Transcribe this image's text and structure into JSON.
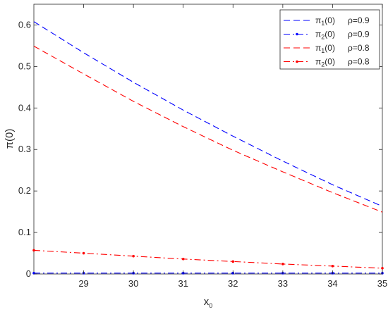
{
  "chart_data": {
    "type": "line",
    "xlabel": "x",
    "xlabel_sub": "0",
    "ylabel": "π(0)",
    "xlim": [
      28,
      35
    ],
    "ylim": [
      0,
      0.65
    ],
    "xticks": [
      29,
      30,
      31,
      32,
      33,
      34,
      35
    ],
    "yticks": [
      0,
      0.1,
      0.2,
      0.3,
      0.4,
      0.5,
      0.6
    ],
    "ytick_labels": [
      "0",
      "0.1",
      "0.2",
      "0.3",
      "0.4",
      "0.5",
      "0.6"
    ],
    "grid": false,
    "legend_position": "top-right",
    "series": [
      {
        "name": "π1(0)  ρ=0.9",
        "legend": {
          "pi": "π",
          "sub": "1",
          "rest": "(0)",
          "rho": "ρ=0.9"
        },
        "color": "#0000ff",
        "style": "dashed",
        "marker": "none",
        "x": [
          28,
          29,
          30,
          31,
          32,
          33,
          34,
          35
        ],
        "y": [
          0.608,
          0.533,
          0.462,
          0.395,
          0.332,
          0.272,
          0.215,
          0.163
        ]
      },
      {
        "name": "π2(0)  ρ=0.9",
        "legend": {
          "pi": "π",
          "sub": "2",
          "rest": "(0)",
          "rho": "ρ=0.9"
        },
        "color": "#0000ff",
        "style": "dashdot",
        "marker": "dot",
        "x": [
          28,
          29,
          30,
          31,
          32,
          33,
          34,
          35
        ],
        "y": [
          0.002,
          0.002,
          0.002,
          0.002,
          0.002,
          0.002,
          0.002,
          0.002
        ]
      },
      {
        "name": "π1(0)  ρ=0.8",
        "legend": {
          "pi": "π",
          "sub": "1",
          "rest": "(0)",
          "rho": "ρ=0.8"
        },
        "color": "#ff0000",
        "style": "dashed",
        "marker": "none",
        "x": [
          28,
          29,
          30,
          31,
          32,
          33,
          34,
          35
        ],
        "y": [
          0.549,
          0.482,
          0.416,
          0.355,
          0.298,
          0.246,
          0.196,
          0.149
        ]
      },
      {
        "name": "π2(0)  ρ=0.8",
        "legend": {
          "pi": "π",
          "sub": "2",
          "rest": "(0)",
          "rho": "ρ=0.8"
        },
        "color": "#ff0000",
        "style": "dashdot",
        "marker": "dot",
        "x": [
          28,
          29,
          30,
          31,
          32,
          33,
          34,
          35
        ],
        "y": [
          0.057,
          0.05,
          0.043,
          0.036,
          0.03,
          0.024,
          0.019,
          0.014
        ]
      }
    ]
  }
}
